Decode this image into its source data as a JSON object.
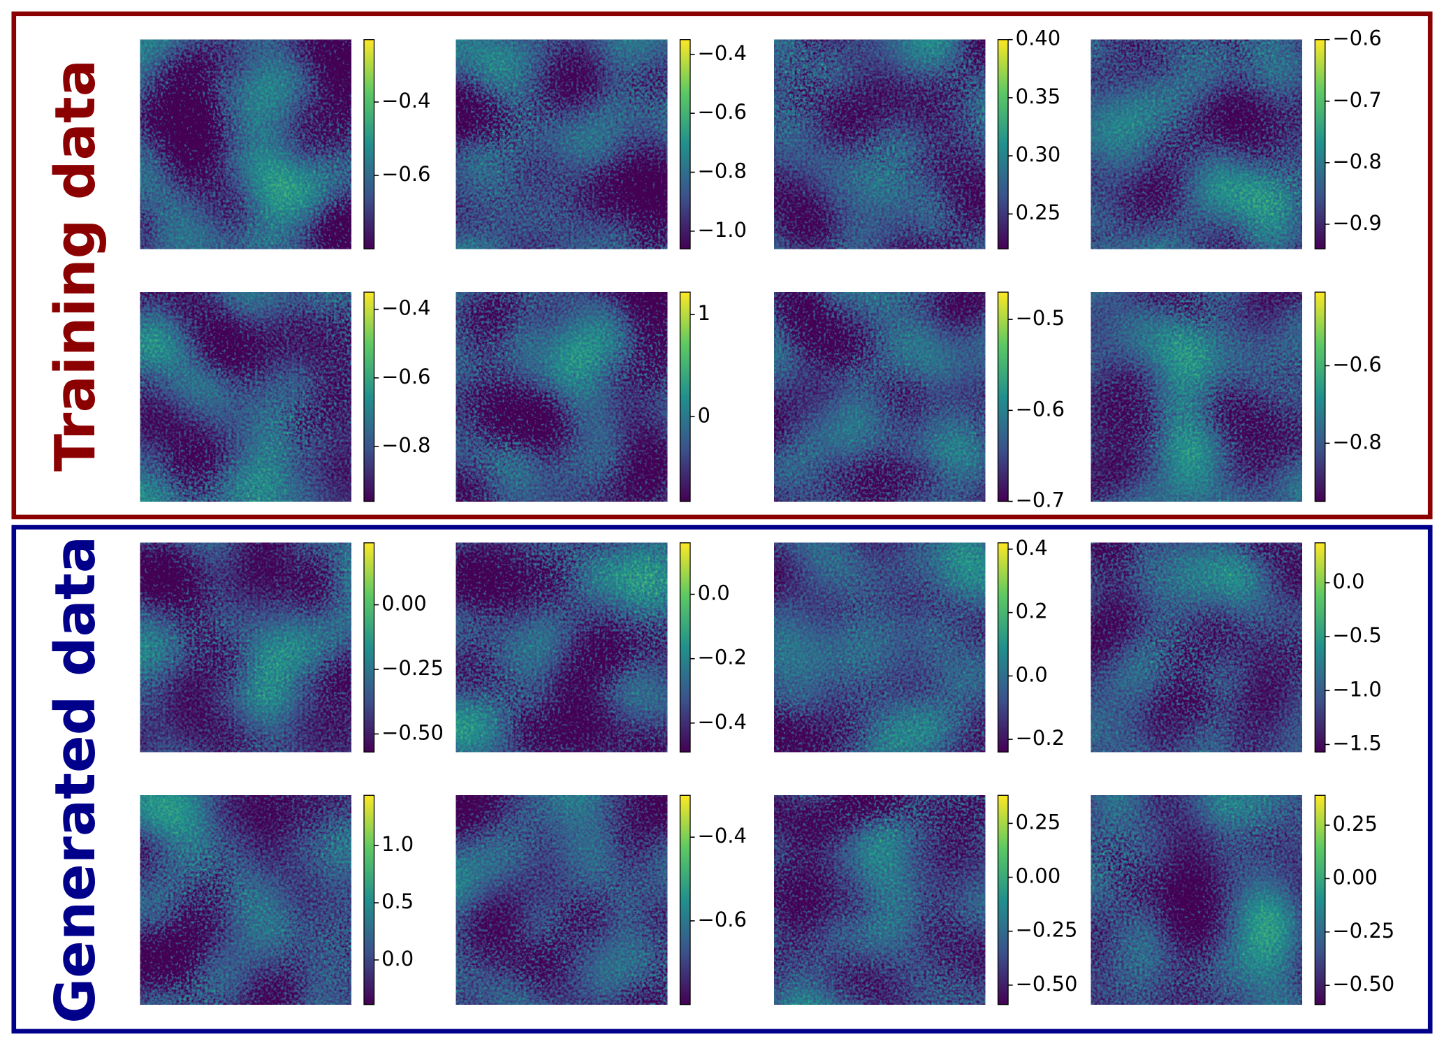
{
  "groups": [
    "Training data",
    "Generated data"
  ],
  "chart_data": [
    {
      "type": "heatmap",
      "clim": [
        -0.8,
        -0.23
      ],
      "cticks": [
        {
          "value": -0.6,
          "label": "−0.6"
        },
        {
          "value": -0.4,
          "label": "−0.4"
        }
      ]
    },
    {
      "type": "heatmap",
      "clim": [
        -1.06,
        -0.35
      ],
      "cticks": [
        {
          "value": -1.0,
          "label": "−1.0"
        },
        {
          "value": -0.8,
          "label": "−0.8"
        },
        {
          "value": -0.6,
          "label": "−0.6"
        },
        {
          "value": -0.4,
          "label": "−0.4"
        }
      ]
    },
    {
      "type": "heatmap",
      "clim": [
        0.22,
        0.4
      ],
      "cticks": [
        0.25,
        {
          "value": 0.3,
          "label": "0.30"
        },
        0.35,
        {
          "value": 0.4,
          "label": "0.40"
        }
      ]
    },
    {
      "type": "heatmap",
      "clim": [
        -0.94,
        -0.6
      ],
      "cticks": [
        {
          "value": -0.9,
          "label": "−0.9"
        },
        {
          "value": -0.8,
          "label": "−0.8"
        },
        {
          "value": -0.7,
          "label": "−0.7"
        },
        {
          "value": -0.6,
          "label": "−0.6"
        }
      ]
    },
    {
      "type": "heatmap",
      "clim": [
        -0.96,
        -0.35
      ],
      "cticks": [
        {
          "value": -0.8,
          "label": "−0.8"
        },
        {
          "value": -0.6,
          "label": "−0.6"
        },
        {
          "value": -0.4,
          "label": "−0.4"
        }
      ]
    },
    {
      "type": "heatmap",
      "clim": [
        -0.83,
        1.22
      ],
      "cticks": [
        0,
        1
      ]
    },
    {
      "type": "heatmap",
      "clim": [
        -0.7,
        -0.47
      ],
      "cticks": [
        {
          "value": -0.7,
          "label": "−0.7"
        },
        {
          "value": -0.6,
          "label": "−0.6"
        },
        {
          "value": -0.5,
          "label": "−0.5"
        }
      ]
    },
    {
      "type": "heatmap",
      "clim": [
        -0.95,
        -0.41
      ],
      "cticks": [
        {
          "value": -0.8,
          "label": "−0.8"
        },
        {
          "value": -0.6,
          "label": "−0.6"
        }
      ]
    },
    {
      "type": "heatmap",
      "clim": [
        -0.57,
        0.24
      ],
      "cticks": [
        {
          "value": -0.5,
          "label": "−0.50"
        },
        {
          "value": -0.25,
          "label": "−0.25"
        },
        {
          "value": 0,
          "label": "0.00"
        }
      ]
    },
    {
      "type": "heatmap",
      "clim": [
        -0.49,
        0.16
      ],
      "cticks": [
        {
          "value": -0.4,
          "label": "−0.4"
        },
        {
          "value": -0.2,
          "label": "−0.2"
        },
        {
          "value": 0,
          "label": "0.0"
        }
      ]
    },
    {
      "type": "heatmap",
      "clim": [
        -0.24,
        0.42
      ],
      "cticks": [
        {
          "value": -0.2,
          "label": "−0.2"
        },
        {
          "value": 0,
          "label": "0.0"
        },
        0.2,
        0.4
      ]
    },
    {
      "type": "heatmap",
      "clim": [
        -1.57,
        0.37
      ],
      "cticks": [
        {
          "value": -1.5,
          "label": "−1.5"
        },
        {
          "value": -1.0,
          "label": "−1.0"
        },
        {
          "value": -0.5,
          "label": "−0.5"
        },
        {
          "value": 0,
          "label": "0.0"
        }
      ]
    },
    {
      "type": "heatmap",
      "clim": [
        -0.39,
        1.44
      ],
      "cticks": [
        {
          "value": 0,
          "label": "0.0"
        },
        0.5,
        {
          "value": 1,
          "label": "1.0"
        }
      ]
    },
    {
      "type": "heatmap",
      "clim": [
        -0.8,
        -0.3
      ],
      "cticks": [
        {
          "value": -0.6,
          "label": "−0.6"
        },
        {
          "value": -0.4,
          "label": "−0.4"
        }
      ]
    },
    {
      "type": "heatmap",
      "clim": [
        -0.59,
        0.38
      ],
      "cticks": [
        {
          "value": -0.5,
          "label": "−0.50"
        },
        {
          "value": -0.25,
          "label": "−0.25"
        },
        {
          "value": 0,
          "label": "0.00"
        },
        0.25
      ]
    },
    {
      "type": "heatmap",
      "clim": [
        -0.59,
        0.39
      ],
      "cticks": [
        {
          "value": -0.5,
          "label": "−0.50"
        },
        {
          "value": -0.25,
          "label": "−0.25"
        },
        {
          "value": 0,
          "label": "0.00"
        },
        0.25
      ]
    }
  ]
}
